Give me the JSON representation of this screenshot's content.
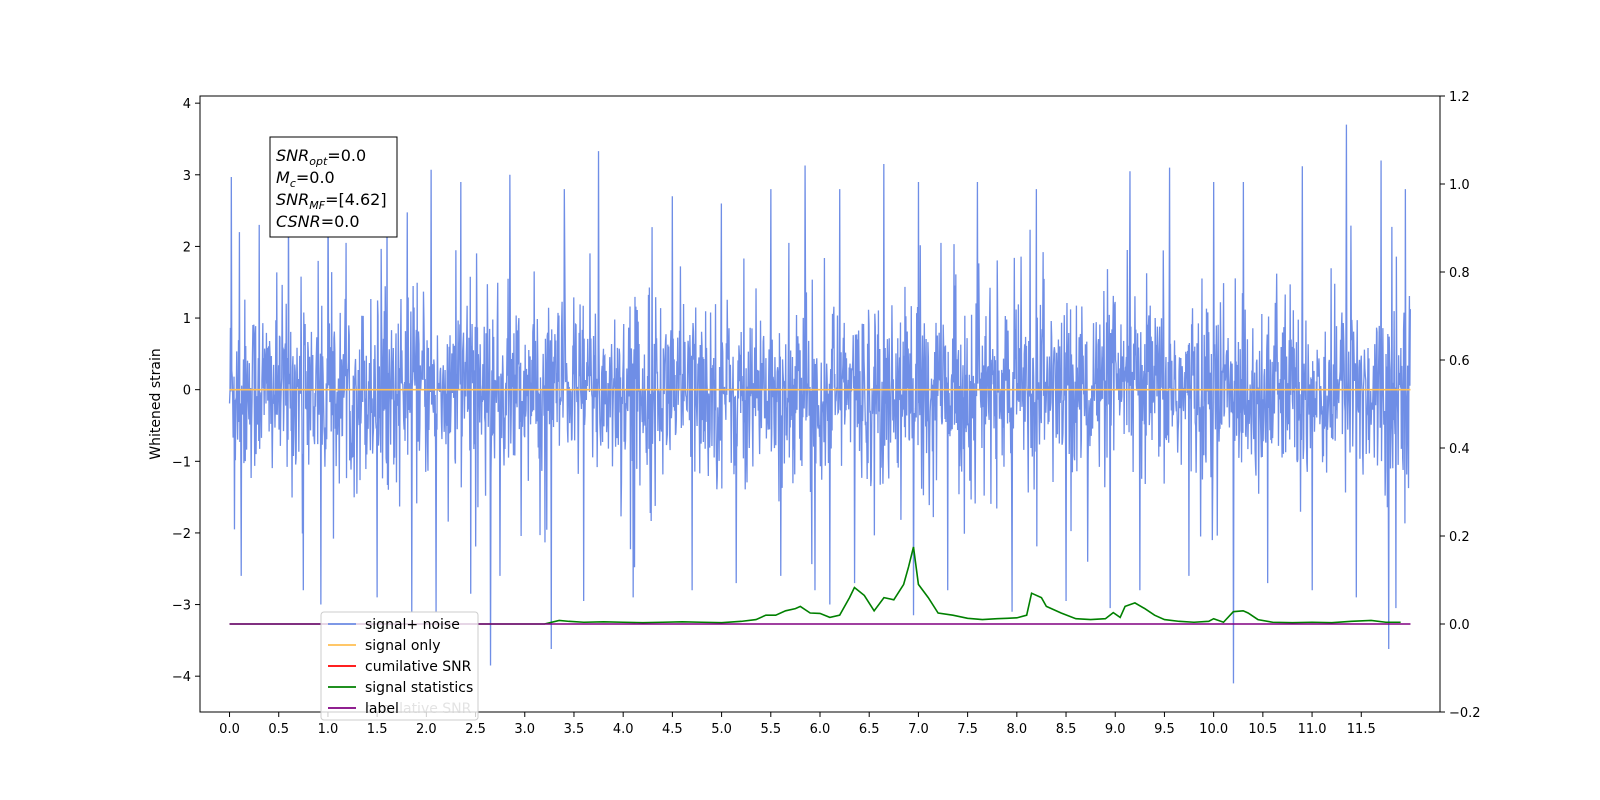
{
  "chart_data": {
    "type": "line",
    "ylabel": "Whitened strain",
    "xlabel": "",
    "x_ticks": [
      "0.0",
      "0.5",
      "1.0",
      "1.5",
      "2.0",
      "2.5",
      "3.0",
      "3.5",
      "4.0",
      "4.5",
      "5.0",
      "5.5",
      "6.0",
      "6.5",
      "7.0",
      "7.5",
      "8.0",
      "8.5",
      "9.0",
      "9.5",
      "10.0",
      "10.5",
      "11.0",
      "11.5"
    ],
    "xlim": [
      -0.3,
      12.3
    ],
    "left_y": {
      "lim": [
        -4.5,
        4.1
      ],
      "ticks": [
        "4",
        "3",
        "2",
        "1",
        "0",
        "−1",
        "−2",
        "−3",
        "−4"
      ],
      "tick_values": [
        4,
        3,
        2,
        1,
        0,
        -1,
        -2,
        -3,
        -4
      ]
    },
    "right_y": {
      "lim": [
        -0.2,
        1.2
      ],
      "ticks": [
        "1.2",
        "1.0",
        "0.8",
        "0.6",
        "0.4",
        "0.2",
        "0.0",
        "−0.2"
      ],
      "tick_values": [
        1.2,
        1.0,
        0.8,
        0.6,
        0.4,
        0.2,
        0.0,
        -0.2
      ]
    },
    "grid": false,
    "legend_position": "bottom-left",
    "annotation": [
      {
        "main": "SNR",
        "sub": "opt",
        "rest": "=0.0"
      },
      {
        "main": "M",
        "sub": "c",
        "rest": "=0.0"
      },
      {
        "main": "SNR",
        "sub": "MF",
        "rest": "=[4.62]"
      },
      {
        "main": "CSNR",
        "sub": "",
        "rest": "=0.0"
      }
    ],
    "series": [
      {
        "name": "signal+ noise",
        "color": "#6f8ee6",
        "axis": "left",
        "style": "noise",
        "x_range": [
          0.0,
          12.0
        ],
        "typical_envelope": [
          -1.4,
          1.4
        ],
        "spikes": [
          [
            0.02,
            2.97
          ],
          [
            0.05,
            -1.95
          ],
          [
            0.1,
            2.2
          ],
          [
            0.12,
            -2.6
          ],
          [
            0.3,
            2.3
          ],
          [
            0.6,
            2.7
          ],
          [
            0.75,
            -2.8
          ],
          [
            1.0,
            2.9
          ],
          [
            0.93,
            -3.0
          ],
          [
            1.6,
            2.7
          ],
          [
            1.5,
            -2.9
          ],
          [
            1.85,
            -3.1
          ],
          [
            2.05,
            3.07
          ],
          [
            2.1,
            -3.1
          ],
          [
            2.35,
            2.9
          ],
          [
            2.45,
            -2.85
          ],
          [
            2.65,
            -3.85
          ],
          [
            2.85,
            3.0
          ],
          [
            2.75,
            -2.6
          ],
          [
            3.27,
            -3.62
          ],
          [
            3.4,
            2.8
          ],
          [
            3.75,
            3.33
          ],
          [
            3.6,
            -2.95
          ],
          [
            4.1,
            -2.9
          ],
          [
            4.5,
            2.7
          ],
          [
            4.7,
            -2.8
          ],
          [
            5.0,
            2.6
          ],
          [
            5.15,
            -2.7
          ],
          [
            5.5,
            2.8
          ],
          [
            5.6,
            -2.6
          ],
          [
            5.85,
            3.13
          ],
          [
            5.95,
            -2.8
          ],
          [
            6.1,
            -3.0
          ],
          [
            6.2,
            2.8
          ],
          [
            6.35,
            -2.7
          ],
          [
            6.65,
            3.15
          ],
          [
            6.95,
            -3.15
          ],
          [
            7.0,
            2.9
          ],
          [
            7.3,
            -2.8
          ],
          [
            7.6,
            2.9
          ],
          [
            7.95,
            -3.1
          ],
          [
            8.2,
            2.8
          ],
          [
            8.5,
            -2.95
          ],
          [
            8.95,
            -3.05
          ],
          [
            9.15,
            3.05
          ],
          [
            9.25,
            -2.8
          ],
          [
            9.55,
            3.1
          ],
          [
            9.75,
            -2.6
          ],
          [
            10.0,
            2.9
          ],
          [
            10.2,
            -4.1
          ],
          [
            10.3,
            2.9
          ],
          [
            10.55,
            -2.7
          ],
          [
            10.9,
            3.12
          ],
          [
            11.0,
            -2.8
          ],
          [
            11.35,
            3.7
          ],
          [
            11.45,
            -2.9
          ],
          [
            11.7,
            3.2
          ],
          [
            11.78,
            -3.62
          ],
          [
            11.85,
            -3.05
          ],
          [
            11.95,
            2.8
          ]
        ]
      },
      {
        "name": "signal only",
        "color": "#ffbf52",
        "axis": "left",
        "x": [
          0.0,
          12.0
        ],
        "y": [
          0.0,
          0.0
        ]
      },
      {
        "name": "cumilative SNR",
        "color": "#ff0000",
        "axis": "left",
        "x": [],
        "y": []
      },
      {
        "name": "signal statistics",
        "color": "#008000",
        "axis": "right",
        "x": [
          0.0,
          3.2,
          3.35,
          3.45,
          3.6,
          3.8,
          4.0,
          4.2,
          4.4,
          4.6,
          4.8,
          5.0,
          5.2,
          5.35,
          5.45,
          5.55,
          5.65,
          5.75,
          5.8,
          5.9,
          6.0,
          6.1,
          6.2,
          6.3,
          6.35,
          6.45,
          6.55,
          6.65,
          6.75,
          6.85,
          6.9,
          6.95,
          7.0,
          7.1,
          7.2,
          7.35,
          7.5,
          7.65,
          7.8,
          7.9,
          8.0,
          8.1,
          8.15,
          8.25,
          8.3,
          8.45,
          8.6,
          8.75,
          8.9,
          8.98,
          9.05,
          9.1,
          9.2,
          9.3,
          9.4,
          9.5,
          9.65,
          9.8,
          9.95,
          10.0,
          10.1,
          10.2,
          10.3,
          10.35,
          10.45,
          10.6,
          10.8,
          11.0,
          11.2,
          11.4,
          11.6,
          11.75,
          11.9
        ],
        "y": [
          0.0,
          0.0,
          0.008,
          0.006,
          0.004,
          0.005,
          0.004,
          0.003,
          0.004,
          0.005,
          0.004,
          0.003,
          0.006,
          0.01,
          0.02,
          0.02,
          0.03,
          0.035,
          0.04,
          0.025,
          0.024,
          0.015,
          0.02,
          0.06,
          0.083,
          0.065,
          0.03,
          0.06,
          0.055,
          0.09,
          0.13,
          0.175,
          0.09,
          0.06,
          0.025,
          0.02,
          0.013,
          0.01,
          0.012,
          0.013,
          0.014,
          0.02,
          0.07,
          0.06,
          0.04,
          0.025,
          0.012,
          0.01,
          0.012,
          0.026,
          0.015,
          0.04,
          0.048,
          0.035,
          0.02,
          0.01,
          0.006,
          0.004,
          0.006,
          0.012,
          0.004,
          0.028,
          0.03,
          0.025,
          0.01,
          0.004,
          0.003,
          0.004,
          0.003,
          0.006,
          0.008,
          0.004,
          0.004
        ]
      },
      {
        "name": "label",
        "color": "#800080",
        "axis": "right",
        "x": [
          0.0,
          12.0
        ],
        "y": [
          0.0,
          0.0
        ]
      }
    ],
    "legend_background_text": "cumilative SNR"
  }
}
